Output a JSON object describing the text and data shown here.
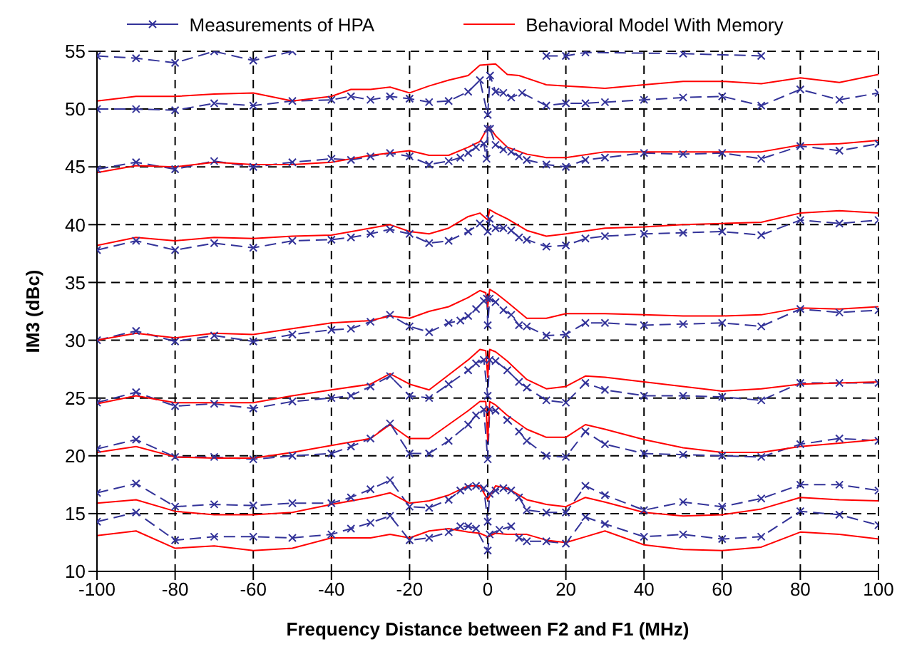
{
  "chart_data": {
    "type": "line",
    "xlabel": "Frequency Distance between F2 and F1 (MHz)",
    "ylabel": "IM3  (dBc)",
    "xlim": [
      -100,
      100
    ],
    "xticks": [
      -100,
      -80,
      -60,
      -40,
      -20,
      0,
      20,
      40,
      60,
      80,
      100
    ],
    "ylim": [
      10,
      55
    ],
    "yticks": [
      10,
      15,
      20,
      25,
      30,
      35,
      40,
      45,
      50,
      55
    ],
    "grid": true,
    "legend": "top",
    "series": [
      {
        "name": "Measurements of HPA",
        "color": "#333399",
        "marker": "cross",
        "line_style": "dashed",
        "x": [
          -100,
          -90,
          -80,
          -70,
          -60,
          -50,
          -40,
          -35,
          -30,
          -25,
          -20,
          -15,
          -10,
          -5,
          -2,
          0,
          0.6,
          2,
          4,
          6,
          8.8,
          15,
          20,
          25,
          30,
          40,
          50,
          60,
          70,
          80,
          90,
          100
        ],
        "values": [
          50.0,
          50.0,
          49.9,
          50.5,
          50.3,
          50.7,
          50.8,
          51.1,
          50.8,
          51.1,
          50.9,
          50.6,
          50.7,
          51.5,
          52.5,
          49.5,
          52.9,
          51.5,
          51.4,
          51.0,
          51.4,
          50.3,
          50.5,
          50.5,
          50.6,
          50.8,
          51.0,
          51.1,
          50.3,
          51.7,
          50.8,
          51.4
        ]
      },
      {
        "name": "Behavioral Model With Memory",
        "color": "#ff0000",
        "marker": "none",
        "line_style": "solid",
        "x": [
          -100,
          -90,
          -80,
          -70,
          -60,
          -50,
          -40,
          -35,
          -30,
          -25,
          -20,
          -15,
          -10,
          -5,
          -2,
          2,
          5,
          8,
          15,
          20,
          25,
          30,
          40,
          50,
          60,
          70,
          80,
          90,
          100
        ],
        "values": [
          50.7,
          51.1,
          51.1,
          51.3,
          51.4,
          50.7,
          51.1,
          51.7,
          51.7,
          51.9,
          51.4,
          52.0,
          52.5,
          52.9,
          53.8,
          53.9,
          53.0,
          52.9,
          52.1,
          52.0,
          51.9,
          51.8,
          52.1,
          52.4,
          52.4,
          52.2,
          52.7,
          52.3,
          53.0
        ]
      },
      {
        "color": "#333399",
        "marker": "cross",
        "line_style": "dashed",
        "x": [
          -100,
          -90,
          -80,
          -70,
          -60,
          -50,
          0,
          15,
          20,
          25,
          50,
          70
        ],
        "values": [
          54.6,
          54.4,
          54.0,
          55,
          54.2,
          55,
          null,
          54.6,
          54.6,
          54.9,
          54.8,
          54.6
        ]
      },
      {
        "color": "#333399",
        "marker": "cross",
        "line_style": "dashed",
        "x": [
          -100,
          -90,
          -80,
          -70,
          -60,
          -50,
          -40,
          -35,
          -30,
          -25,
          -20,
          -15,
          -10,
          -7,
          -5,
          -3,
          -1,
          -0.3,
          0,
          0.6,
          2,
          4,
          6,
          8,
          10,
          15,
          20,
          25,
          30,
          40,
          50,
          60,
          70,
          80,
          90,
          100
        ],
        "values": [
          44.8,
          45.4,
          44.8,
          45.5,
          45.0,
          45.4,
          45.7,
          45.6,
          45.9,
          46.2,
          45.9,
          45.2,
          45.5,
          45.8,
          46.2,
          46.7,
          47.0,
          45.7,
          48.3,
          48.3,
          46.9,
          46.5,
          46.3,
          45.9,
          45.6,
          45.2,
          45.0,
          45.6,
          45.8,
          46.2,
          46.1,
          46.2,
          45.7,
          46.8,
          46.4,
          47.0
        ]
      },
      {
        "color": "#ff0000",
        "marker": "none",
        "line_style": "solid",
        "x": [
          -100,
          -90,
          -80,
          -70,
          -60,
          -50,
          -40,
          -30,
          -20,
          -15,
          -10,
          -5,
          -2,
          0,
          0.3,
          2,
          5,
          10,
          15,
          20,
          30,
          40,
          50,
          60,
          70,
          80,
          90,
          100
        ],
        "values": [
          44.5,
          45.1,
          45.0,
          45.4,
          45.2,
          45.2,
          45.4,
          46.0,
          46.4,
          46.0,
          46.0,
          46.7,
          47.2,
          48.4,
          48.5,
          47.7,
          46.7,
          46.1,
          45.8,
          45.8,
          46.3,
          46.3,
          46.3,
          46.3,
          46.3,
          46.9,
          47.0,
          47.3
        ]
      },
      {
        "color": "#333399",
        "marker": "cross",
        "line_style": "dashed",
        "x": [
          -100,
          -90,
          -80,
          -70,
          -60,
          -50,
          -40,
          -35,
          -30,
          -25,
          -20,
          -15,
          -10,
          -5,
          -2,
          0,
          0.5,
          2,
          4,
          6,
          8,
          10,
          15,
          20,
          25,
          30,
          40,
          50,
          60,
          70,
          80,
          90,
          100
        ],
        "values": [
          37.8,
          38.6,
          37.8,
          38.4,
          38.0,
          38.6,
          38.7,
          38.9,
          39.2,
          39.6,
          39.2,
          38.4,
          38.6,
          39.4,
          40.1,
          39.4,
          40.5,
          39.7,
          39.7,
          39.5,
          38.9,
          38.7,
          38.1,
          38.2,
          38.8,
          39.0,
          39.2,
          39.3,
          39.4,
          39.1,
          40.4,
          40.1,
          40.4
        ]
      },
      {
        "color": "#ff0000",
        "marker": "none",
        "line_style": "solid",
        "x": [
          -100,
          -90,
          -80,
          -70,
          -60,
          -50,
          -40,
          -30,
          -25,
          -20,
          -15,
          -10,
          -5,
          -2,
          0,
          0.5,
          2,
          5,
          10,
          15,
          20,
          30,
          40,
          50,
          60,
          70,
          80,
          90,
          100
        ],
        "values": [
          38.2,
          38.9,
          38.6,
          38.9,
          38.8,
          39.0,
          39.1,
          39.7,
          40.0,
          39.4,
          39.2,
          39.7,
          40.7,
          41.0,
          40.4,
          41.3,
          41.0,
          40.5,
          39.5,
          39.0,
          39.2,
          39.7,
          39.8,
          40.0,
          40.1,
          40.2,
          41.0,
          41.2,
          41.0
        ]
      },
      {
        "color": "#333399",
        "marker": "cross",
        "line_style": "dashed",
        "x": [
          -100,
          -90,
          -80,
          -70,
          -60,
          -50,
          -40,
          -35,
          -30,
          -25,
          -20,
          -15,
          -10,
          -7,
          -5,
          -3,
          -1,
          -0.2,
          0,
          0.5,
          2,
          4,
          6,
          8,
          10,
          15,
          20,
          25,
          30,
          40,
          50,
          60,
          70,
          80,
          90,
          100
        ],
        "values": [
          30.0,
          30.8,
          29.9,
          30.4,
          29.9,
          30.5,
          30.9,
          31.0,
          31.6,
          32.2,
          31.2,
          30.7,
          31.5,
          31.7,
          32.1,
          32.7,
          33.4,
          33.6,
          31.3,
          33.6,
          33.3,
          32.6,
          32.2,
          31.3,
          31.2,
          30.4,
          30.5,
          31.5,
          31.5,
          31.3,
          31.4,
          31.5,
          31.2,
          32.7,
          32.4,
          32.6
        ]
      },
      {
        "color": "#ff0000",
        "marker": "none",
        "line_style": "solid",
        "x": [
          -100,
          -90,
          -80,
          -70,
          -60,
          -50,
          -40,
          -30,
          -25,
          -20,
          -15,
          -10,
          -5,
          -2,
          -0.5,
          0,
          0.5,
          2,
          5,
          10,
          15,
          20,
          30,
          40,
          50,
          60,
          70,
          80,
          90,
          100
        ],
        "values": [
          30.0,
          30.6,
          30.2,
          30.6,
          30.5,
          31.0,
          31.5,
          31.7,
          32.1,
          31.9,
          32.5,
          32.9,
          33.7,
          34.3,
          34.1,
          32.9,
          34.4,
          34.1,
          33.3,
          31.9,
          31.9,
          32.3,
          32.3,
          32.2,
          32.1,
          32.1,
          32.2,
          32.8,
          32.7,
          32.9
        ]
      },
      {
        "color": "#333399",
        "marker": "cross",
        "line_style": "dashed",
        "x": [
          -100,
          -90,
          -80,
          -70,
          -60,
          -50,
          -40,
          -35,
          -30,
          -25,
          -20,
          -15,
          -10,
          -5,
          -3,
          -1,
          0,
          0.5,
          2,
          5,
          8,
          10,
          15,
          20,
          25,
          30,
          40,
          50,
          60,
          70,
          80,
          90,
          100
        ],
        "values": [
          24.6,
          25.5,
          24.3,
          24.5,
          24.1,
          24.7,
          25.0,
          25.2,
          26.0,
          26.9,
          25.2,
          25.0,
          26.2,
          27.4,
          28.0,
          28.3,
          25.2,
          28.3,
          28.2,
          27.4,
          26.4,
          25.9,
          24.8,
          24.6,
          26.3,
          25.7,
          25.2,
          25.2,
          25.1,
          24.8,
          26.3,
          26.3,
          26.3
        ]
      },
      {
        "color": "#ff0000",
        "marker": "none",
        "line_style": "solid",
        "x": [
          -100,
          -90,
          -80,
          -70,
          -60,
          -50,
          -40,
          -30,
          -25,
          -20,
          -15,
          -10,
          -5,
          -2,
          -0.5,
          0,
          0.5,
          2,
          5,
          10,
          15,
          20,
          25,
          30,
          40,
          50,
          60,
          70,
          80,
          90,
          100
        ],
        "values": [
          24.5,
          25.2,
          24.6,
          24.6,
          24.6,
          25.2,
          25.7,
          26.2,
          27.1,
          26.2,
          25.7,
          27.0,
          28.3,
          29.2,
          29.1,
          26.8,
          29.2,
          29.0,
          28.2,
          26.6,
          25.8,
          26.0,
          26.9,
          26.8,
          26.4,
          26.0,
          25.6,
          25.8,
          26.2,
          26.3,
          26.4
        ]
      },
      {
        "color": "#333399",
        "marker": "cross",
        "line_style": "dashed",
        "x": [
          -100,
          -90,
          -80,
          -70,
          -60,
          -50,
          -40,
          -35,
          -30,
          -25,
          -20,
          -15,
          -10,
          -5,
          -3,
          -1,
          0,
          0.5,
          2,
          5,
          8,
          10,
          15,
          20,
          25,
          30,
          40,
          50,
          60,
          70,
          80,
          90,
          100
        ],
        "values": [
          20.6,
          21.4,
          19.9,
          19.9,
          19.7,
          20.0,
          20.2,
          20.8,
          21.5,
          22.8,
          20.2,
          20.2,
          21.3,
          22.7,
          23.5,
          24.0,
          19.7,
          24.0,
          23.9,
          23.1,
          22.1,
          21.3,
          20.0,
          19.9,
          22.1,
          21.0,
          20.2,
          20.1,
          20.0,
          19.9,
          21.0,
          21.5,
          21.3
        ]
      },
      {
        "color": "#ff0000",
        "marker": "none",
        "line_style": "solid",
        "x": [
          -100,
          -90,
          -80,
          -70,
          -60,
          -50,
          -40,
          -30,
          -25,
          -20,
          -15,
          -10,
          -5,
          -2,
          -0.5,
          0,
          0.5,
          2,
          5,
          10,
          15,
          20,
          25,
          30,
          40,
          50,
          60,
          70,
          80,
          90,
          100
        ],
        "values": [
          20.3,
          20.8,
          19.9,
          19.8,
          19.8,
          20.3,
          20.9,
          21.5,
          22.7,
          21.5,
          21.5,
          22.7,
          23.9,
          24.7,
          24.7,
          21.3,
          24.7,
          24.4,
          23.5,
          22.3,
          21.6,
          21.6,
          22.7,
          22.3,
          21.4,
          20.7,
          20.3,
          20.3,
          20.8,
          21.1,
          21.4
        ]
      },
      {
        "color": "#333399",
        "marker": "cross",
        "line_style": "dashed",
        "x": [
          -100,
          -90,
          -80,
          -70,
          -60,
          -50,
          -40,
          -35,
          -30,
          -25,
          -20,
          -15,
          -10,
          -7,
          -5,
          -3,
          -1,
          0,
          0.5,
          2,
          4,
          6,
          8,
          10,
          15,
          20,
          25,
          30,
          40,
          50,
          60,
          70,
          80,
          90,
          100
        ],
        "values": [
          16.8,
          17.6,
          15.6,
          15.8,
          15.7,
          15.9,
          15.9,
          16.4,
          17.1,
          17.9,
          15.6,
          15.5,
          16.2,
          17.0,
          17.3,
          17.4,
          17.2,
          14.3,
          16.7,
          17.0,
          17.2,
          17.0,
          16.4,
          15.3,
          15.1,
          15.1,
          17.4,
          16.6,
          15.3,
          16.0,
          15.6,
          16.3,
          17.5,
          17.5,
          17.0
        ]
      },
      {
        "color": "#ff0000",
        "marker": "none",
        "line_style": "solid",
        "x": [
          -100,
          -90,
          -80,
          -70,
          -60,
          -50,
          -40,
          -30,
          -25,
          -20,
          -15,
          -10,
          -5,
          -2,
          0,
          2,
          5,
          10,
          15,
          20,
          25,
          30,
          40,
          50,
          60,
          70,
          80,
          90,
          100
        ],
        "values": [
          15.9,
          16.2,
          15.2,
          14.9,
          14.9,
          15.1,
          15.8,
          16.4,
          16.8,
          15.9,
          16.1,
          16.6,
          17.4,
          17.4,
          16.2,
          17.4,
          17.2,
          16.2,
          15.8,
          15.6,
          16.4,
          16.0,
          15.1,
          14.8,
          14.9,
          15.4,
          16.4,
          16.2,
          16.1
        ]
      },
      {
        "color": "#333399",
        "marker": "cross",
        "line_style": "dashed",
        "x": [
          -100,
          -90,
          -80,
          -70,
          -60,
          -50,
          -40,
          -35,
          -30,
          -25,
          -20,
          -15,
          -10,
          -7,
          -5,
          -3,
          0,
          0.5,
          3,
          6,
          8,
          10,
          15,
          20,
          25,
          30,
          40,
          50,
          60,
          70,
          80,
          90,
          100
        ],
        "values": [
          14.3,
          15.1,
          12.7,
          13.0,
          13.0,
          12.9,
          13.2,
          13.7,
          14.2,
          14.8,
          12.7,
          12.9,
          13.4,
          13.9,
          13.9,
          13.7,
          11.8,
          13.2,
          13.6,
          13.9,
          12.9,
          12.6,
          12.6,
          12.4,
          14.7,
          14.1,
          13.0,
          13.2,
          12.8,
          13.0,
          15.2,
          14.9,
          14.0
        ]
      },
      {
        "color": "#ff0000",
        "marker": "none",
        "line_style": "solid",
        "x": [
          -100,
          -90,
          -80,
          -70,
          -60,
          -50,
          -40,
          -30,
          -25,
          -20,
          -15,
          -10,
          -5,
          -2,
          0,
          2,
          5,
          10,
          15,
          20,
          25,
          30,
          40,
          50,
          60,
          70,
          80,
          90,
          100
        ],
        "values": [
          13.1,
          13.5,
          12.0,
          12.2,
          11.8,
          12.0,
          12.9,
          12.9,
          13.2,
          12.9,
          13.5,
          13.7,
          13.4,
          13.3,
          13.0,
          13.3,
          13.2,
          13.2,
          12.7,
          12.5,
          13.0,
          13.5,
          12.3,
          11.9,
          11.8,
          12.1,
          13.4,
          13.2,
          12.8
        ]
      }
    ]
  }
}
